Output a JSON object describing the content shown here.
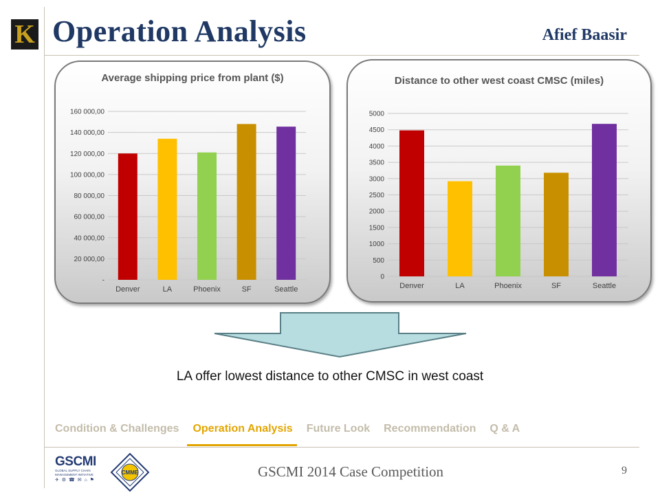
{
  "slide": {
    "title": "Operation Analysis",
    "author": "Afief Baasir",
    "logo_letter": "K",
    "conclusion": "LA offer lowest distance to other CMSC in west coast",
    "footer": "GSCMI 2014 Case Competition",
    "page_number": "9",
    "accent_color": "#e2a500",
    "title_color": "#1f3864"
  },
  "nav": {
    "tabs": [
      {
        "label": "Condition & Challenges",
        "active": false
      },
      {
        "label": "Operation Analysis",
        "active": true
      },
      {
        "label": "Future Look",
        "active": false
      },
      {
        "label": "Recommendation",
        "active": false
      },
      {
        "label": "Q & A",
        "active": false
      }
    ]
  },
  "logos": {
    "gscmi_name": "GSCMI",
    "gscmi_sub": "GLOBAL SUPPLY CHAIN MANAGEMENT INITIATIVE",
    "cmme_name": "CMME"
  },
  "chart_data": [
    {
      "type": "bar",
      "title": "Average shipping price from plant ($)",
      "categories": [
        "Denver",
        "LA",
        "Phoenix",
        "SF",
        "Seattle"
      ],
      "values": [
        120000,
        134000,
        121000,
        148000,
        145500
      ],
      "colors": [
        "#c00000",
        "#ffc000",
        "#92d050",
        "#c89000",
        "#7030a0"
      ],
      "ylim": [
        0,
        160000
      ],
      "yticks": [
        0,
        20000,
        40000,
        60000,
        80000,
        100000,
        120000,
        140000,
        160000
      ],
      "ytick_labels": [
        "-",
        "20 000,00",
        "40 000,00",
        "60 000,00",
        "80 000,00",
        "100 000,00",
        "120 000,00",
        "140 000,00",
        "160 000,00"
      ],
      "grid": true,
      "legend": "none"
    },
    {
      "type": "bar",
      "title": "Distance to other west coast CMSC (miles)",
      "categories": [
        "Denver",
        "LA",
        "Phoenix",
        "SF",
        "Seattle"
      ],
      "values": [
        4480,
        2920,
        3400,
        3180,
        4680
      ],
      "colors": [
        "#c00000",
        "#ffc000",
        "#92d050",
        "#c89000",
        "#7030a0"
      ],
      "ylim": [
        0,
        5000
      ],
      "yticks": [
        0,
        500,
        1000,
        1500,
        2000,
        2500,
        3000,
        3500,
        4000,
        4500,
        5000
      ],
      "ytick_labels": [
        "0",
        "500",
        "1000",
        "1500",
        "2000",
        "2500",
        "3000",
        "3500",
        "4000",
        "4500",
        "5000"
      ],
      "grid": true,
      "legend": "none"
    }
  ]
}
